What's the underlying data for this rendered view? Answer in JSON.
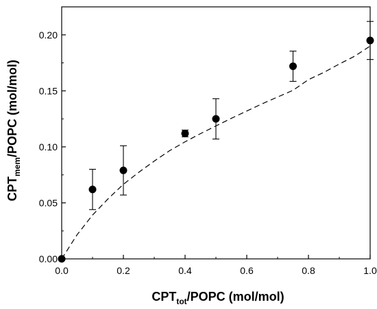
{
  "chart_data": {
    "type": "scatter",
    "x_label": {
      "main": "CPT",
      "sub": "tot",
      "rest": "/POPC (mol/mol)"
    },
    "y_label": {
      "main": "CPT",
      "sub": "mem",
      "rest": "/POPC (mol/mol)"
    },
    "xlim": [
      0.0,
      1.0
    ],
    "ylim": [
      0.0,
      0.225
    ],
    "x_ticks": [
      "0.0",
      "0.2",
      "0.4",
      "0.6",
      "0.8",
      "1.0"
    ],
    "x_tick_values": [
      0.0,
      0.2,
      0.4,
      0.6,
      0.8,
      1.0
    ],
    "y_ticks": [
      "0.00",
      "0.05",
      "0.10",
      "0.15",
      "0.20"
    ],
    "y_tick_values": [
      0.0,
      0.05,
      0.1,
      0.15,
      0.2
    ],
    "grid": false,
    "points": [
      {
        "x": 0.0,
        "y": 0.0,
        "err": 0.0
      },
      {
        "x": 0.1,
        "y": 0.062,
        "err": 0.018
      },
      {
        "x": 0.2,
        "y": 0.079,
        "err": 0.022
      },
      {
        "x": 0.4,
        "y": 0.112,
        "err": 0.003
      },
      {
        "x": 0.5,
        "y": 0.125,
        "err": 0.018
      },
      {
        "x": 0.75,
        "y": 0.172,
        "err": 0.0135
      },
      {
        "x": 1.0,
        "y": 0.195,
        "err": 0.017
      }
    ],
    "fit_curve": {
      "style": "dashed",
      "x": [
        0.0,
        0.05,
        0.1,
        0.15,
        0.2,
        0.25,
        0.3,
        0.35,
        0.4,
        0.45,
        0.5,
        0.55,
        0.6,
        0.65,
        0.7,
        0.75,
        0.8,
        0.85,
        0.9,
        0.95,
        1.0
      ],
      "y": [
        0.0,
        0.0216,
        0.0391,
        0.0535,
        0.0666,
        0.0773,
        0.0873,
        0.0966,
        0.1045,
        0.1118,
        0.1187,
        0.1255,
        0.132,
        0.1385,
        0.1445,
        0.1505,
        0.16,
        0.1665,
        0.174,
        0.181,
        0.19
      ]
    },
    "colors": {
      "points": "#000000",
      "curve": "#000000",
      "axes": "#000000"
    }
  }
}
